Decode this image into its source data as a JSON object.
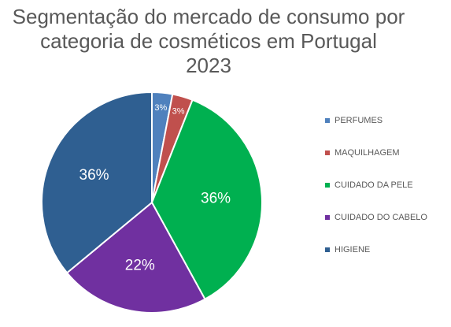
{
  "chart_data": {
    "type": "pie",
    "title_lines": [
      "Segmentação do mercado de consumo por",
      "categoria de cosméticos em Portugal",
      "2023"
    ],
    "categories": [
      "PERFUMES",
      "MAQUILHAGEM",
      "CUIDADO DA PELE",
      "CUIDADO DO CABELO",
      "HIGIENE"
    ],
    "values": [
      3,
      3,
      36,
      22,
      36
    ],
    "labels": [
      "3%",
      "3%",
      "36%",
      "22%",
      "36%"
    ],
    "colors": [
      "#4f81bd",
      "#c0504d",
      "#00b050",
      "#7030a0",
      "#2f5f91"
    ],
    "label_color": "#ffffff",
    "legend_position": "right"
  }
}
